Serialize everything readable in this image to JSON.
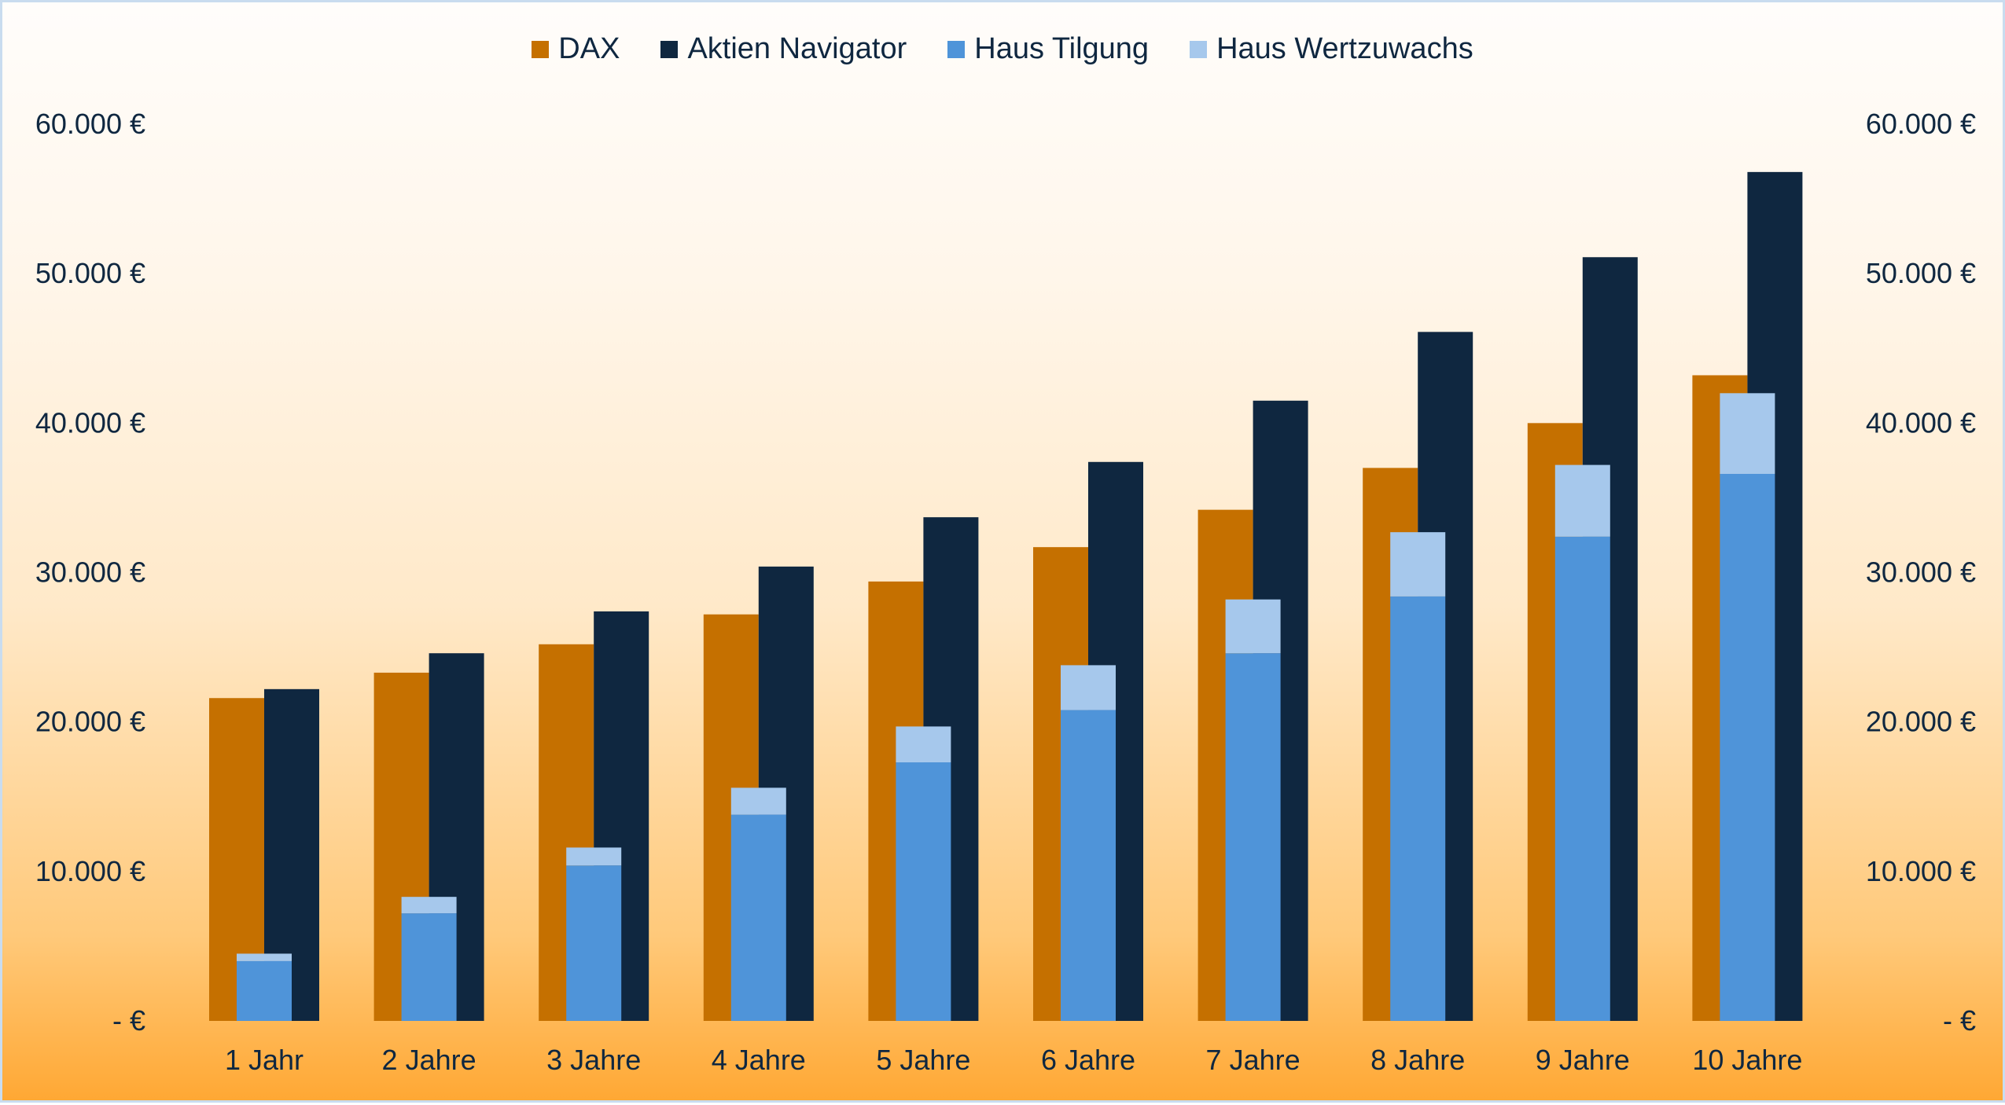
{
  "chart_data": {
    "type": "bar",
    "categories": [
      "1 Jahr",
      "2 Jahre",
      "3 Jahre",
      "4 Jahre",
      "5 Jahre",
      "6 Jahre",
      "7 Jahre",
      "8 Jahre",
      "9 Jahre",
      "10 Jahre"
    ],
    "series": [
      {
        "name": "DAX",
        "color": "#c57000",
        "values": [
          21600,
          23300,
          25200,
          27200,
          29400,
          31700,
          34200,
          37000,
          40000,
          43200
        ]
      },
      {
        "name": "Aktien Navigator",
        "color": "#0f2740",
        "values": [
          22200,
          24600,
          27400,
          30400,
          33700,
          37400,
          41500,
          46100,
          51100,
          56800
        ]
      },
      {
        "name": "Haus Tilgung",
        "color": "#4f94d9",
        "stack": "haus",
        "values": [
          4000,
          7200,
          10400,
          13800,
          17300,
          20800,
          24600,
          28400,
          32400,
          36600
        ]
      },
      {
        "name": "Haus Wertzuwachs",
        "color": "#a6c8ec",
        "stack": "haus",
        "values": [
          500,
          1100,
          1200,
          1800,
          2400,
          3000,
          3600,
          4300,
          4800,
          5400
        ]
      }
    ],
    "ylim": [
      0,
      60000
    ],
    "ytick_values": [
      0,
      10000,
      20000,
      30000,
      40000,
      50000,
      60000
    ],
    "ytick_labels": [
      "-   €",
      "10.000 €",
      "20.000 €",
      "30.000 €",
      "40.000 €",
      "50.000 €",
      "60.000 €"
    ],
    "secondary_axis": "right (mirrors left)",
    "legend_position": "top-center",
    "grid": false,
    "title": "",
    "xlabel": "",
    "ylabel": ""
  }
}
